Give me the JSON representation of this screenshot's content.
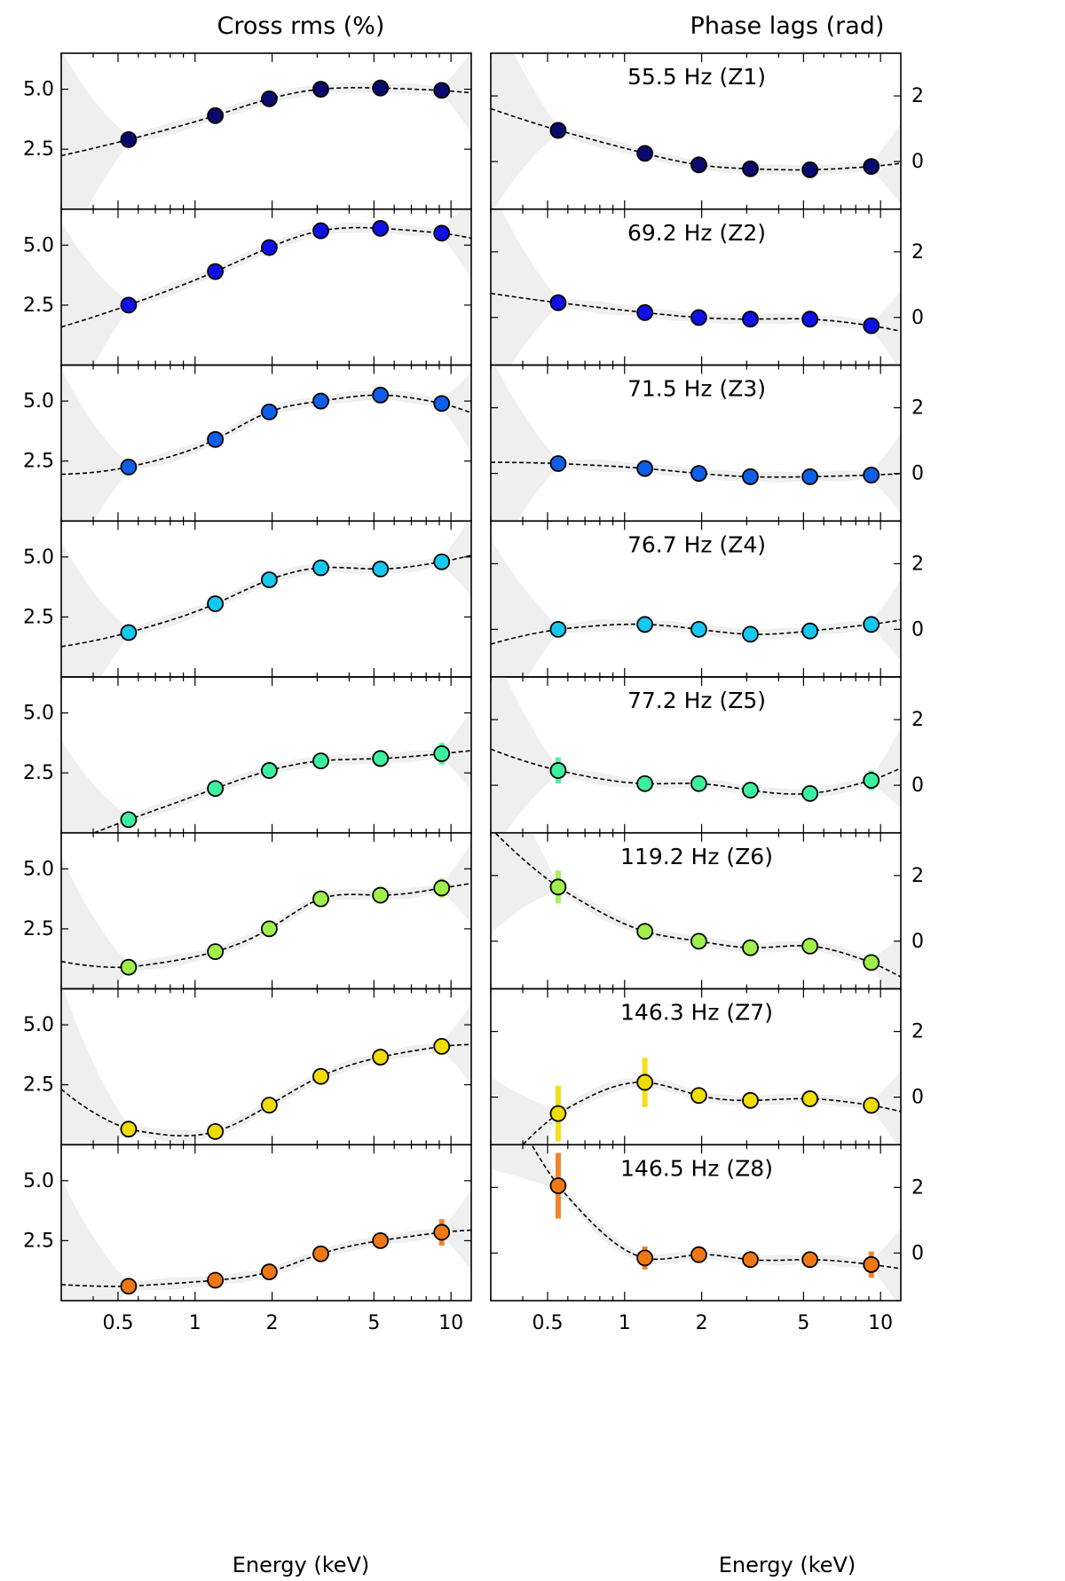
{
  "chart_data": {
    "type": "scatter",
    "column_titles": {
      "left": "Cross rms (%)",
      "right": "Phase lags (rad)"
    },
    "xlabel": "Energy (keV)",
    "xscale": "log",
    "xlim": [
      0.3,
      12
    ],
    "x_ticks": [
      0.5,
      1,
      2,
      5,
      10
    ],
    "x_tick_labels": [
      "0.5",
      "1",
      "2",
      "5",
      "10"
    ],
    "energies": [
      0.55,
      1.2,
      1.95,
      3.1,
      5.3,
      9.2
    ],
    "rms_ylim": [
      0,
      6.5
    ],
    "rms_ticks": [
      2.5,
      5.0
    ],
    "rms_tick_labels": [
      "2.5",
      "5.0"
    ],
    "lag_ylim": [
      -1.45,
      3.3
    ],
    "lag_ticks": [
      0,
      2
    ],
    "lag_tick_labels": [
      "0",
      "2"
    ],
    "panels": [
      {
        "label": "55.5 Hz (Z1)",
        "color": "#0a0a6e",
        "rms": [
          2.9,
          3.9,
          4.6,
          5.0,
          5.05,
          4.95
        ],
        "rms_err": [
          0.12,
          0.12,
          0.12,
          0.12,
          0.12,
          0.12
        ],
        "lag": [
          0.95,
          0.25,
          -0.1,
          -0.22,
          -0.25,
          -0.15
        ],
        "lag_err": [
          0.1,
          0.1,
          0.1,
          0.1,
          0.1,
          0.1
        ]
      },
      {
        "label": "69.2 Hz (Z2)",
        "color": "#0f0fe6",
        "rms": [
          2.5,
          3.9,
          4.9,
          5.6,
          5.7,
          5.5
        ],
        "rms_err": [
          0.12,
          0.12,
          0.12,
          0.12,
          0.12,
          0.12
        ],
        "lag": [
          0.45,
          0.15,
          0.0,
          -0.05,
          -0.05,
          -0.25
        ],
        "lag_err": [
          0.1,
          0.1,
          0.1,
          0.1,
          0.1,
          0.1
        ]
      },
      {
        "label": "71.5 Hz (Z3)",
        "color": "#0f5fe6",
        "rms": [
          2.25,
          3.4,
          4.55,
          5.0,
          5.25,
          4.9
        ],
        "rms_err": [
          0.12,
          0.12,
          0.12,
          0.12,
          0.12,
          0.12
        ],
        "lag": [
          0.3,
          0.15,
          0.0,
          -0.1,
          -0.1,
          -0.05
        ],
        "lag_err": [
          0.1,
          0.1,
          0.1,
          0.1,
          0.1,
          0.1
        ]
      },
      {
        "label": "76.7 Hz (Z4)",
        "color": "#14c8f0",
        "rms": [
          1.85,
          3.05,
          4.05,
          4.55,
          4.5,
          4.8
        ],
        "rms_err": [
          0.12,
          0.12,
          0.12,
          0.12,
          0.12,
          0.12
        ],
        "lag": [
          0.0,
          0.15,
          0.0,
          -0.15,
          -0.05,
          0.15
        ],
        "lag_err": [
          0.1,
          0.1,
          0.1,
          0.1,
          0.1,
          0.1
        ]
      },
      {
        "label": "77.2 Hz (Z5)",
        "color": "#3cf0a0",
        "rms": [
          0.55,
          1.85,
          2.6,
          3.0,
          3.1,
          3.3
        ],
        "rms_err": [
          0.25,
          0.12,
          0.12,
          0.12,
          0.12,
          0.45
        ],
        "lag": [
          0.45,
          0.05,
          0.05,
          -0.15,
          -0.25,
          0.15
        ],
        "lag_err": [
          0.4,
          0.1,
          0.1,
          0.1,
          0.1,
          0.3
        ]
      },
      {
        "label": "119.2 Hz (Z6)",
        "color": "#a0f04b",
        "rms": [
          0.9,
          1.55,
          2.5,
          3.75,
          3.9,
          4.2
        ],
        "rms_err": [
          0.12,
          0.12,
          0.12,
          0.12,
          0.12,
          0.4
        ],
        "lag": [
          1.65,
          0.3,
          0.0,
          -0.2,
          -0.15,
          -0.65
        ],
        "lag_err": [
          0.5,
          0.1,
          0.1,
          0.1,
          0.1,
          0.1
        ]
      },
      {
        "label": "146.3 Hz (Z7)",
        "color": "#f0dc00",
        "rms": [
          0.65,
          0.55,
          1.65,
          2.85,
          3.65,
          4.1
        ],
        "rms_err": [
          0.12,
          0.12,
          0.12,
          0.12,
          0.12,
          0.35
        ],
        "lag": [
          -0.5,
          0.45,
          0.05,
          -0.1,
          -0.05,
          -0.25
        ],
        "lag_err": [
          0.85,
          0.75,
          0.1,
          0.1,
          0.1,
          0.1
        ]
      },
      {
        "label": "146.5 Hz (Z8)",
        "color": "#f07814",
        "rms": [
          0.6,
          0.85,
          1.2,
          1.95,
          2.5,
          2.85
        ],
        "rms_err": [
          0.12,
          0.12,
          0.12,
          0.12,
          0.12,
          0.55
        ],
        "lag": [
          2.05,
          -0.15,
          -0.05,
          -0.2,
          -0.2,
          -0.35
        ],
        "lag_err": [
          1.0,
          0.35,
          0.1,
          0.1,
          0.1,
          0.4
        ]
      }
    ]
  }
}
